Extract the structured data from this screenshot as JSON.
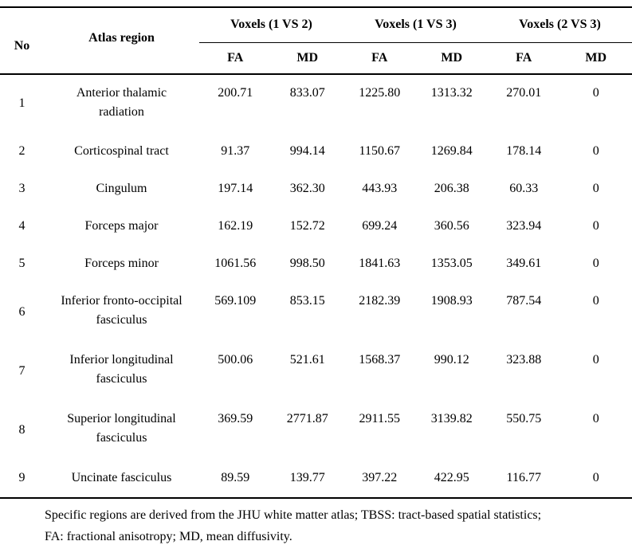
{
  "table": {
    "headers": {
      "no": "No",
      "atlas_region": "Atlas region",
      "groups": [
        "Voxels (1 VS 2)",
        "Voxels (1 VS 3)",
        "Voxels (2 VS 3)"
      ],
      "sub": [
        "FA",
        "MD",
        "FA",
        "MD",
        "FA",
        "MD"
      ]
    },
    "rows": [
      {
        "no": "1",
        "region_line1": "Anterior thalamic",
        "region_line2": "radiation",
        "values": [
          "200.71",
          "833.07",
          "1225.80",
          "1313.32",
          "270.01",
          "0"
        ]
      },
      {
        "no": "2",
        "region_line1": "Corticospinal tract",
        "region_line2": "",
        "values": [
          "91.37",
          "994.14",
          "1150.67",
          "1269.84",
          "178.14",
          "0"
        ]
      },
      {
        "no": "3",
        "region_line1": "Cingulum",
        "region_line2": "",
        "values": [
          "197.14",
          "362.30",
          "443.93",
          "206.38",
          "60.33",
          "0"
        ]
      },
      {
        "no": "4",
        "region_line1": "Forceps major",
        "region_line2": "",
        "values": [
          "162.19",
          "152.72",
          "699.24",
          "360.56",
          "323.94",
          "0"
        ]
      },
      {
        "no": "5",
        "region_line1": "Forceps minor",
        "region_line2": "",
        "values": [
          "1061.56",
          "998.50",
          "1841.63",
          "1353.05",
          "349.61",
          "0"
        ]
      },
      {
        "no": "6",
        "region_line1": "Inferior fronto-occipital",
        "region_line2": "fasciculus",
        "values": [
          "569.109",
          "853.15",
          "2182.39",
          "1908.93",
          "787.54",
          "0"
        ]
      },
      {
        "no": "7",
        "region_line1": "Inferior longitudinal",
        "region_line2": "fasciculus",
        "values": [
          "500.06",
          "521.61",
          "1568.37",
          "990.12",
          "323.88",
          "0"
        ]
      },
      {
        "no": "8",
        "region_line1": "Superior longitudinal",
        "region_line2": "fasciculus",
        "values": [
          "369.59",
          "2771.87",
          "2911.55",
          "3139.82",
          "550.75",
          "0"
        ]
      },
      {
        "no": "9",
        "region_line1": "Uncinate fasciculus",
        "region_line2": "",
        "values": [
          "89.59",
          "139.77",
          "397.22",
          "422.95",
          "116.77",
          "0"
        ]
      }
    ]
  },
  "footnote": {
    "line1": "Specific regions are derived from the JHU white matter atlas; TBSS: tract-based spatial statistics;",
    "line2": "FA: fractional anisotropy; MD, mean diffusivity."
  }
}
